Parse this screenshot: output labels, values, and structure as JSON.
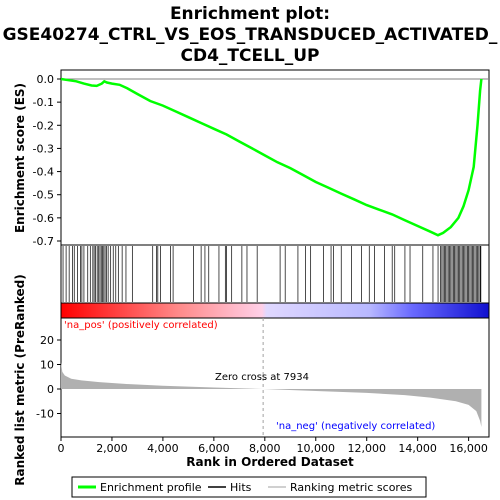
{
  "chart_data": {
    "type": "line",
    "title_line1": "Enrichment plot:",
    "title_line2": "GSE40274_CTRL_VS_EOS_TRANSDUCED_ACTIVATED_",
    "title_line3": "CD4_TCELL_UP",
    "ylabel_top": "Enrichment score (ES)",
    "ylabel_bottom": "Ranked list metric (PreRanked)",
    "xlabel": "Rank in Ordered Dataset",
    "x_range": [
      0,
      16800
    ],
    "es_ylim": [
      -0.72,
      0.03
    ],
    "es_ticks": [
      "0.0",
      "-0.1",
      "-0.2",
      "-0.3",
      "-0.4",
      "-0.5",
      "-0.6",
      "-0.7"
    ],
    "metric_ylim": [
      -17,
      28
    ],
    "metric_ticks": [
      "20",
      "10",
      "0",
      "-10"
    ],
    "x_ticks": [
      "0",
      "2,000",
      "4,000",
      "6,000",
      "8,000",
      "10,000",
      "12,000",
      "14,000",
      "16,000"
    ],
    "zero_cross_label": "Zero cross at 7934",
    "zero_cross": 7934,
    "pos_label": "'na_pos' (positively correlated)",
    "neg_label": "'na_neg' (negatively correlated)",
    "n_genes": 16500,
    "es_curve": [
      [
        0,
        0.0
      ],
      [
        300,
        -0.005
      ],
      [
        600,
        -0.01
      ],
      [
        900,
        -0.02
      ],
      [
        1200,
        -0.028
      ],
      [
        1400,
        -0.03
      ],
      [
        1600,
        -0.02
      ],
      [
        1700,
        -0.01
      ],
      [
        1800,
        -0.015
      ],
      [
        2000,
        -0.02
      ],
      [
        2300,
        -0.025
      ],
      [
        2600,
        -0.04
      ],
      [
        3000,
        -0.065
      ],
      [
        3500,
        -0.095
      ],
      [
        4000,
        -0.115
      ],
      [
        4500,
        -0.14
      ],
      [
        5000,
        -0.165
      ],
      [
        5500,
        -0.19
      ],
      [
        6000,
        -0.215
      ],
      [
        6500,
        -0.24
      ],
      [
        7000,
        -0.27
      ],
      [
        7500,
        -0.3
      ],
      [
        8000,
        -0.33
      ],
      [
        8500,
        -0.36
      ],
      [
        9000,
        -0.385
      ],
      [
        9500,
        -0.415
      ],
      [
        10000,
        -0.445
      ],
      [
        10500,
        -0.47
      ],
      [
        11000,
        -0.495
      ],
      [
        11500,
        -0.52
      ],
      [
        12000,
        -0.545
      ],
      [
        12500,
        -0.565
      ],
      [
        13000,
        -0.585
      ],
      [
        13500,
        -0.61
      ],
      [
        14000,
        -0.635
      ],
      [
        14500,
        -0.66
      ],
      [
        14800,
        -0.675
      ],
      [
        15000,
        -0.665
      ],
      [
        15300,
        -0.64
      ],
      [
        15600,
        -0.6
      ],
      [
        15800,
        -0.55
      ],
      [
        16000,
        -0.48
      ],
      [
        16200,
        -0.38
      ],
      [
        16350,
        -0.2
      ],
      [
        16450,
        -0.05
      ],
      [
        16500,
        0.0
      ]
    ],
    "hits": [
      80,
      200,
      320,
      450,
      520,
      650,
      760,
      820,
      900,
      1050,
      1150,
      1250,
      1300,
      1350,
      1420,
      1480,
      1530,
      1580,
      1630,
      1680,
      1730,
      1790,
      1850,
      1950,
      2050,
      2150,
      2250,
      2400,
      2550,
      2800,
      3600,
      3750,
      3800,
      3900,
      4300,
      4400,
      5200,
      5500,
      5650,
      5800,
      6200,
      6450,
      6500,
      6700,
      7100,
      7300,
      7700,
      8600,
      8800,
      9300,
      9600,
      9800,
      10300,
      10600,
      10700,
      11000,
      11400,
      11800,
      12100,
      12300,
      12700,
      13000,
      13100,
      13500,
      13700,
      14200,
      14600,
      14800,
      14900,
      14950,
      15000,
      15050,
      15100,
      15150,
      15200,
      15250,
      15300,
      15350,
      15400,
      15450,
      15500,
      15550,
      15600,
      15650,
      15700,
      15750,
      15800,
      15850,
      15900,
      15950,
      16000,
      16050,
      16100,
      16150,
      16200,
      16250,
      16300,
      16350,
      16400,
      16450,
      16480
    ],
    "metric_curve": [
      [
        0,
        11
      ],
      [
        50,
        7
      ],
      [
        150,
        5.5
      ],
      [
        400,
        4.2
      ],
      [
        800,
        3.5
      ],
      [
        1500,
        2.8
      ],
      [
        2500,
        2.1
      ],
      [
        4000,
        1.3
      ],
      [
        6000,
        0.6
      ],
      [
        7934,
        0
      ],
      [
        10000,
        -0.8
      ],
      [
        12000,
        -1.6
      ],
      [
        13500,
        -2.5
      ],
      [
        14500,
        -3.5
      ],
      [
        15500,
        -5
      ],
      [
        16000,
        -6.5
      ],
      [
        16300,
        -9
      ],
      [
        16450,
        -13
      ],
      [
        16500,
        -15.5
      ]
    ],
    "legend": [
      "Enrichment profile",
      "Hits",
      "Ranking metric scores"
    ],
    "colors": {
      "es_line": "#00ff00",
      "hits": "#000000",
      "metric_fill": "#b0b0b0",
      "pos_label": "#ff0000",
      "neg_label": "#0000ff",
      "bar_pos": "#ff0000",
      "bar_neg": "#0000ff"
    }
  }
}
